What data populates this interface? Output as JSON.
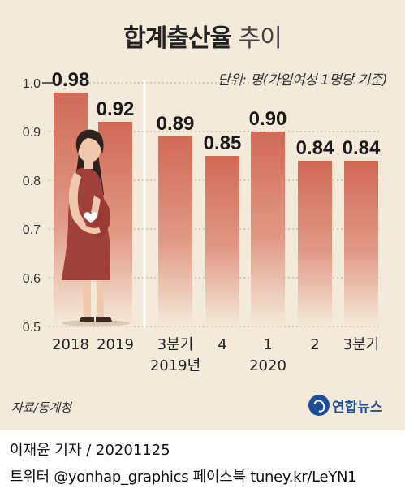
{
  "title": {
    "bold": "합계출산율",
    "light": "추이"
  },
  "unit_label": "단위: 명(가임여성 1명당 기준)",
  "source": "자료/통계청",
  "logo": {
    "text": "연합뉴스",
    "icon": "yonhap-logo-icon"
  },
  "credit": {
    "author": "이재윤 기자 / 20201125",
    "social": "트위터 @yonhap_graphics 페이스북 tuney.kr/LeYN1"
  },
  "colors": {
    "background": "#f4ead9",
    "bar_top": "#d06a55",
    "bar_bottom": "#f4ead9",
    "dress": "#a0403a"
  },
  "illustration": "pregnant-woman-icon",
  "chart_data": {
    "type": "bar",
    "categories": [
      "2018",
      "2019",
      "3분기 2019년",
      "4",
      "1 2020",
      "2",
      "3분기"
    ],
    "category_lines": [
      [
        "2018"
      ],
      [
        "2019"
      ],
      [
        "3분기",
        "2019년"
      ],
      [
        "4"
      ],
      [
        "1",
        "2020"
      ],
      [
        "2"
      ],
      [
        "3분기"
      ]
    ],
    "values": [
      0.98,
      0.92,
      0.89,
      0.85,
      0.9,
      0.84,
      0.84
    ],
    "value_labels": [
      "0.98",
      "0.92",
      "0.89",
      "0.85",
      "0.90",
      "0.84",
      "0.84"
    ],
    "ylim": [
      0.5,
      1.0
    ],
    "yticks": [
      "0.5",
      "0.6",
      "0.7",
      "0.8",
      "0.9",
      "1.0"
    ],
    "ytick_values": [
      0.5,
      0.6,
      0.7,
      0.8,
      0.9,
      1.0
    ],
    "grid": "dashed horizontal",
    "title": "합계출산율 추이",
    "ylabel": ""
  }
}
